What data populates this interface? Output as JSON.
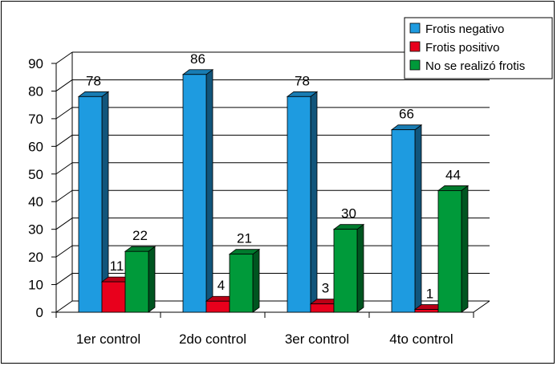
{
  "chart_data": {
    "type": "bar",
    "title": "",
    "xlabel": "",
    "ylabel": "",
    "ylim": [
      0,
      90
    ],
    "yticks": [
      0,
      10,
      20,
      30,
      40,
      50,
      60,
      70,
      80,
      90
    ],
    "categories": [
      "1er control",
      "2do control",
      "3er control",
      "4to control"
    ],
    "series": [
      {
        "name": "Frotis negativo",
        "color": "#1E9BE0",
        "values": [
          78,
          86,
          78,
          66
        ]
      },
      {
        "name": "Frotis positivo",
        "color": "#E8001C",
        "values": [
          11,
          4,
          3,
          1
        ]
      },
      {
        "name": "No se realizó frotis",
        "color": "#009A3A",
        "values": [
          22,
          21,
          30,
          44
        ]
      }
    ],
    "grid": true,
    "legend": "top-right",
    "style": "3d-bars"
  }
}
